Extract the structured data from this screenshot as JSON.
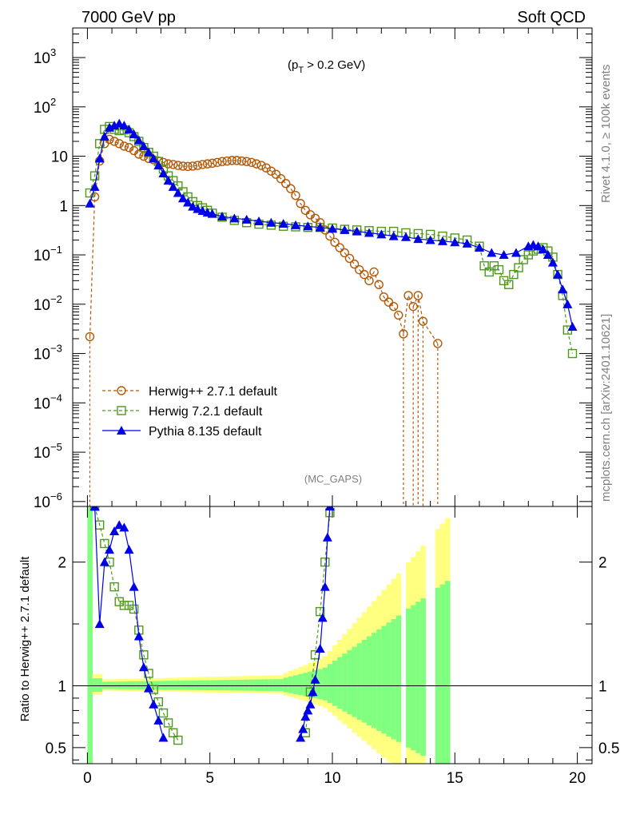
{
  "header": {
    "left": "7000 GeV pp",
    "right": "Soft QCD"
  },
  "side_labels": {
    "rivet": "Rivet 4.1.0, ≥ 100k events",
    "mcplots": "mcplots.cern.ch [arXiv:2401.10621]"
  },
  "watermark": "(MC_GAPS)",
  "colors": {
    "herwig_old": "#b35806",
    "herwig_new": "#4d9a1a",
    "pythia": "#0000e6",
    "band_yellow": "#ffff80",
    "band_green": "#80ff80"
  },
  "chart_data": [
    {
      "type": "line",
      "panel": "main",
      "cut_label": "(p",
      "cut_sub": "T",
      "cut_rest": " > 0.2 GeV)",
      "xlim": [
        -0.6,
        20.6
      ],
      "ylim_log": [
        -6.1,
        3.6
      ],
      "yscale": "log",
      "y_ticks": [
        {
          "exp": -6,
          "label": "10",
          "sup": "−6"
        },
        {
          "exp": -5,
          "label": "10",
          "sup": "−5"
        },
        {
          "exp": -4,
          "label": "10",
          "sup": "−4"
        },
        {
          "exp": -3,
          "label": "10",
          "sup": "−3"
        },
        {
          "exp": -2,
          "label": "10",
          "sup": "−2"
        },
        {
          "exp": -1,
          "label": "10",
          "sup": "−1"
        },
        {
          "exp": 0,
          "label": "1",
          "sup": ""
        },
        {
          "exp": 1,
          "label": "10",
          "sup": ""
        },
        {
          "exp": 2,
          "label": "10",
          "sup": "2"
        },
        {
          "exp": 3,
          "label": "10",
          "sup": "3"
        }
      ],
      "legend": [
        {
          "name": "Herwig++ 2.7.1 default",
          "marker": "circle",
          "style": "dashed"
        },
        {
          "name": "Herwig 7.2.1 default",
          "marker": "square",
          "style": "dashed"
        },
        {
          "name": "Pythia 8.135 default",
          "marker": "triangle",
          "style": "solid"
        }
      ],
      "series": [
        {
          "name": "Herwig++ 2.7.1 default",
          "x": [
            0.1,
            0.3,
            0.5,
            0.7,
            0.9,
            1.1,
            1.3,
            1.5,
            1.7,
            1.9,
            2.1,
            2.3,
            2.5,
            2.7,
            2.9,
            3.1,
            3.3,
            3.5,
            3.7,
            3.9,
            4.1,
            4.3,
            4.5,
            4.7,
            4.9,
            5.1,
            5.3,
            5.5,
            5.7,
            5.9,
            6.1,
            6.3,
            6.5,
            6.7,
            6.9,
            7.1,
            7.3,
            7.5,
            7.7,
            7.9,
            8.1,
            8.3,
            8.5,
            8.7,
            8.9,
            9.1,
            9.3,
            9.5,
            9.7,
            9.9,
            10.1,
            10.3,
            10.5,
            10.7,
            10.9,
            11.1,
            11.3,
            11.5,
            11.7,
            11.9,
            12.1,
            12.3,
            12.5,
            12.7,
            12.9,
            13.1,
            13.3,
            13.5,
            13.7,
            14.3
          ],
          "values": [
            0.0022,
            1.5,
            8,
            18,
            22,
            20,
            18,
            16,
            15,
            13,
            11,
            10,
            9,
            8.5,
            8,
            7.5,
            7,
            6.8,
            6.5,
            6.3,
            6.2,
            6.3,
            6.5,
            6.8,
            7,
            7.2,
            7.5,
            7.8,
            8,
            8.2,
            8.2,
            8,
            7.8,
            7.5,
            7,
            6.5,
            5.8,
            5,
            4.3,
            3.5,
            2.8,
            2.2,
            1.6,
            1.1,
            0.8,
            0.65,
            0.55,
            0.45,
            0.32,
            0.24,
            0.18,
            0.14,
            0.11,
            0.085,
            0.065,
            0.05,
            0.04,
            0.03,
            0.045,
            0.025,
            0.014,
            0.011,
            0.009,
            0.006,
            0.0025,
            0.015,
            0.009,
            0.015,
            0.0045,
            0.0016
          ]
        },
        {
          "name": "Herwig 7.2.1 default",
          "x": [
            0.1,
            0.3,
            0.5,
            0.7,
            0.9,
            1.1,
            1.3,
            1.5,
            1.7,
            1.9,
            2.1,
            2.3,
            2.5,
            2.7,
            2.9,
            3.1,
            3.3,
            3.5,
            3.7,
            3.9,
            4.1,
            4.3,
            4.5,
            4.7,
            4.9,
            5.1,
            5.5,
            6,
            6.5,
            7,
            7.5,
            8,
            8.5,
            9,
            9.5,
            10,
            10.5,
            11,
            11.5,
            12,
            12.5,
            13,
            13.5,
            14,
            14.5,
            15,
            15.5,
            16,
            16.2,
            16.4,
            16.6,
            16.8,
            17,
            17.2,
            17.4,
            17.6,
            17.8,
            18,
            18.2,
            18.4,
            18.6,
            18.8,
            19,
            19.2,
            19.4,
            19.6,
            19.8
          ],
          "values": [
            1.8,
            4,
            18,
            35,
            40,
            35,
            33,
            34,
            30,
            25,
            20,
            15,
            12,
            10,
            7.8,
            5.5,
            4,
            3.2,
            2.5,
            1.9,
            1.5,
            1.2,
            1.0,
            0.9,
            0.8,
            0.7,
            0.58,
            0.5,
            0.45,
            0.42,
            0.4,
            0.38,
            0.37,
            0.36,
            0.36,
            0.35,
            0.33,
            0.32,
            0.31,
            0.3,
            0.3,
            0.28,
            0.27,
            0.26,
            0.24,
            0.22,
            0.2,
            0.15,
            0.06,
            0.045,
            0.06,
            0.05,
            0.03,
            0.025,
            0.04,
            0.055,
            0.08,
            0.1,
            0.12,
            0.13,
            0.14,
            0.12,
            0.09,
            0.04,
            0.015,
            0.003,
            0.001
          ]
        },
        {
          "name": "Pythia 8.135 default",
          "x": [
            0.1,
            0.3,
            0.5,
            0.7,
            0.9,
            1.1,
            1.3,
            1.5,
            1.7,
            1.9,
            2.1,
            2.3,
            2.5,
            2.7,
            2.9,
            3.1,
            3.3,
            3.5,
            3.7,
            3.9,
            4.1,
            4.3,
            4.5,
            4.7,
            4.9,
            5.1,
            5.5,
            6,
            6.5,
            7,
            7.5,
            8,
            8.5,
            9,
            9.5,
            10,
            10.5,
            11,
            11.5,
            12,
            12.5,
            13,
            13.5,
            14,
            14.5,
            15,
            15.5,
            16,
            16.5,
            17,
            17.5,
            18,
            18.2,
            18.4,
            18.6,
            18.8,
            19,
            19.2,
            19.4,
            19.6,
            19.8
          ],
          "values": [
            1.1,
            2.4,
            9,
            25,
            38,
            42,
            46,
            42,
            35,
            28,
            21,
            16,
            12,
            9,
            6.5,
            4.5,
            3.2,
            2.4,
            1.8,
            1.4,
            1.15,
            0.95,
            0.85,
            0.78,
            0.72,
            0.68,
            0.6,
            0.55,
            0.52,
            0.48,
            0.45,
            0.43,
            0.4,
            0.38,
            0.36,
            0.34,
            0.32,
            0.3,
            0.28,
            0.26,
            0.24,
            0.23,
            0.21,
            0.2,
            0.19,
            0.18,
            0.17,
            0.14,
            0.11,
            0.1,
            0.11,
            0.15,
            0.16,
            0.15,
            0.13,
            0.1,
            0.07,
            0.04,
            0.02,
            0.01,
            0.0035
          ]
        }
      ]
    },
    {
      "type": "line",
      "panel": "ratio",
      "ylabel": "Ratio to Herwig++ 2.7.1 default",
      "xlim": [
        -0.6,
        20.6
      ],
      "ylim": [
        0.37,
        2.45
      ],
      "y_ticks": [
        0.5,
        1,
        2
      ],
      "y_tick_labels": [
        "0.5",
        "1",
        "2"
      ],
      "x_ticks": [
        0,
        5,
        10,
        15,
        20
      ],
      "x_tick_labels": [
        "0",
        "5",
        "10",
        "15",
        "20"
      ],
      "series": [
        {
          "name": "Herwig 7.2.1 default",
          "x": [
            0.3,
            0.5,
            0.7,
            0.9,
            1.1,
            1.3,
            1.5,
            1.7,
            1.9,
            2.1,
            2.3,
            2.5,
            2.7,
            2.9,
            3.1,
            3.3,
            3.5,
            3.7,
            8.9,
            9.1,
            9.3,
            9.5,
            9.7,
            9.9
          ],
          "values": [
            2.45,
            2.3,
            2.15,
            2.0,
            1.8,
            1.68,
            1.65,
            1.65,
            1.62,
            1.45,
            1.25,
            1.1,
            0.97,
            0.87,
            0.78,
            0.7,
            0.62,
            0.56,
            0.62,
            0.95,
            1.25,
            1.6,
            2.0,
            2.4
          ]
        },
        {
          "name": "Pythia 8.135 default",
          "x": [
            0.3,
            0.5,
            0.7,
            0.9,
            1.1,
            1.3,
            1.5,
            1.7,
            1.9,
            2.1,
            2.3,
            2.5,
            2.7,
            2.9,
            3.1,
            8.7,
            8.8,
            8.9,
            9.0,
            9.1,
            9.2,
            9.3,
            9.5,
            9.6,
            9.7,
            9.8,
            9.9
          ],
          "values": [
            2.45,
            1.5,
            2.0,
            2.1,
            2.25,
            2.3,
            2.28,
            2.1,
            1.8,
            1.4,
            1.15,
            0.98,
            0.85,
            0.72,
            0.58,
            0.58,
            0.65,
            0.75,
            0.8,
            0.85,
            0.95,
            1.05,
            1.3,
            1.55,
            1.8,
            2.2,
            2.45
          ]
        }
      ]
    }
  ]
}
